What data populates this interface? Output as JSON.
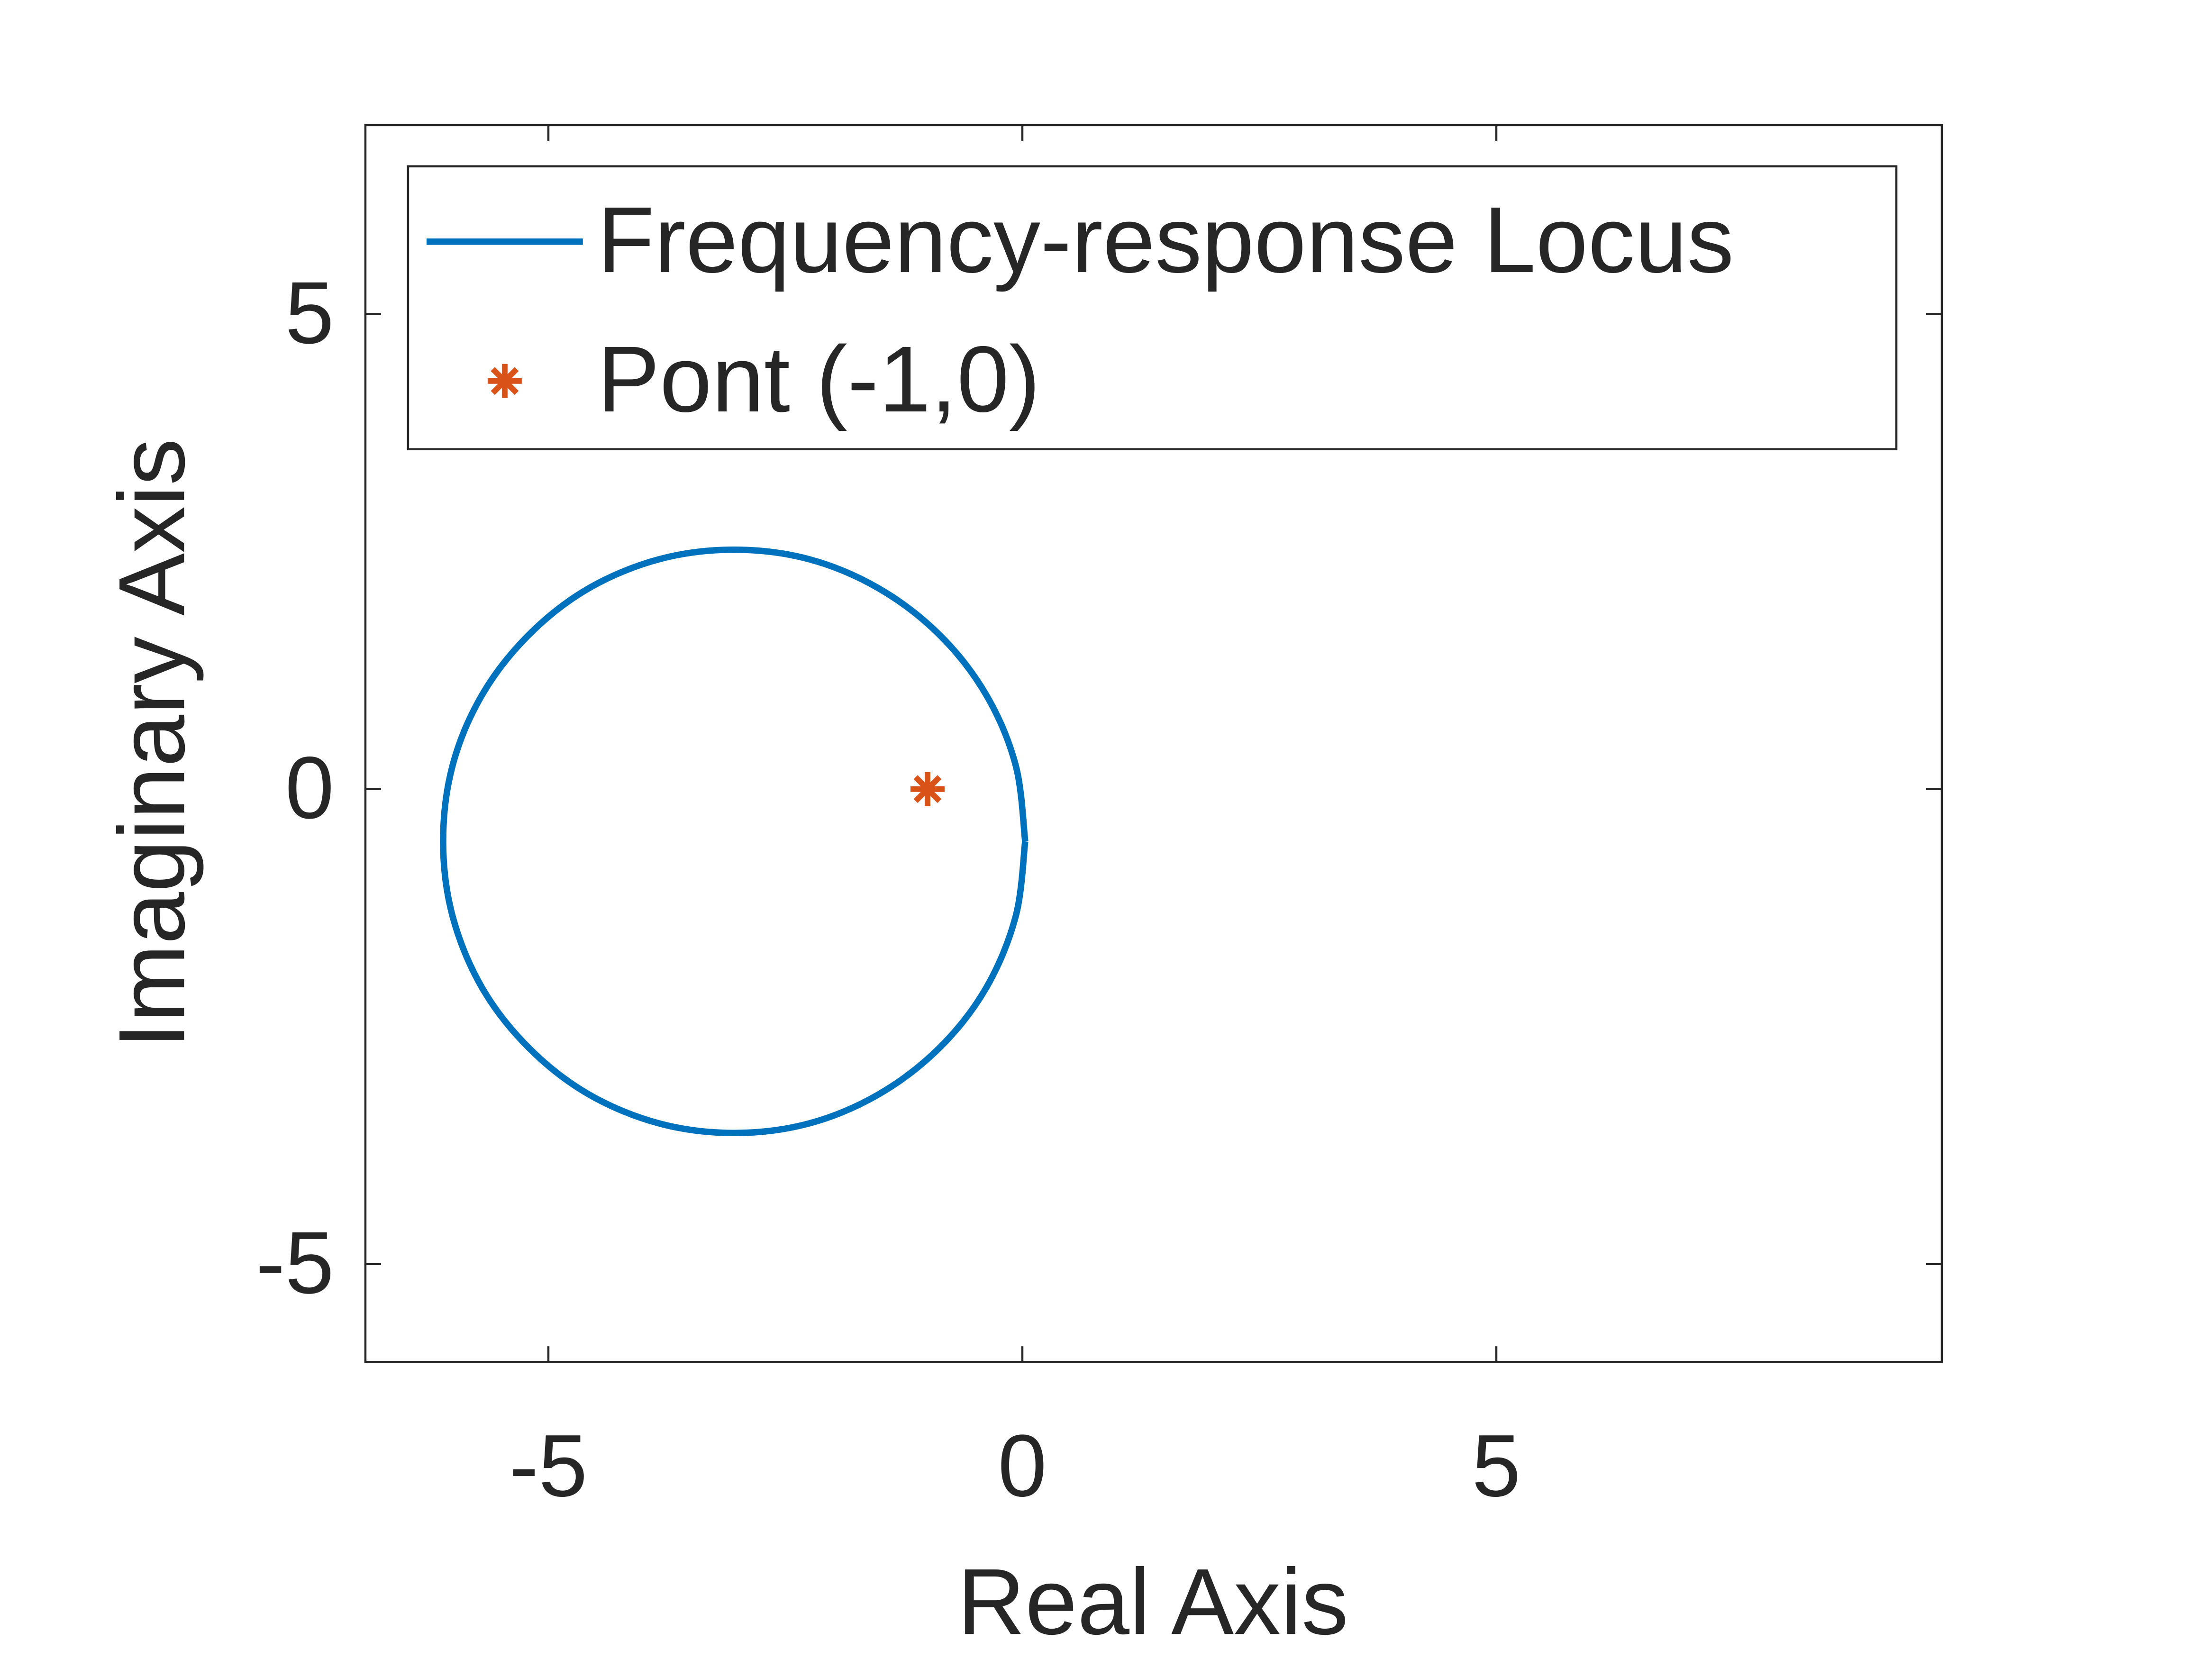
{
  "chart_data": {
    "type": "line",
    "xlabel": "Real Axis",
    "ylabel": "Imaginary Axis",
    "xlim": [
      -6.93,
      9.7
    ],
    "ylim": [
      -6.03,
      6.99
    ],
    "xticks": [
      -5,
      0,
      5
    ],
    "yticks": [
      -5,
      0,
      5
    ],
    "box": true,
    "grid": false,
    "legend_position": "top",
    "series": [
      {
        "name": "Frequency-response Locus",
        "color": "#0072bd",
        "marker": "none",
        "line": true,
        "x": [
          0.03,
          -0.07,
          -0.38,
          -0.87,
          -1.51,
          -2.25,
          -3.04,
          -3.83,
          -4.58,
          -5.21,
          -5.7,
          -6.01,
          -6.11,
          -6.01,
          -5.7,
          -5.21,
          -4.58,
          -3.83,
          -3.04,
          -2.25,
          -1.51,
          -0.87,
          -0.38,
          -0.07,
          0.03
        ],
        "y": [
          -0.55,
          0.25,
          0.99,
          1.62,
          2.11,
          2.42,
          2.52,
          2.42,
          2.11,
          1.62,
          0.99,
          0.25,
          -0.55,
          -1.34,
          -2.09,
          -2.72,
          -3.21,
          -3.52,
          -3.62,
          -3.52,
          -3.21,
          -2.72,
          -2.09,
          -1.34,
          -0.55
        ]
      },
      {
        "name": "Pont (-1,0)",
        "color": "#d95319",
        "marker": "*",
        "line": false,
        "x": [
          -1
        ],
        "y": [
          0
        ]
      }
    ]
  }
}
